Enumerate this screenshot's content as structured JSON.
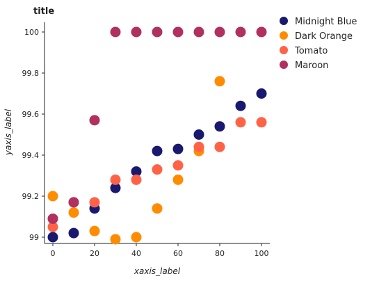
{
  "chart_data": {
    "type": "scatter",
    "title": "title",
    "xlabel": "xaxis_label",
    "ylabel": "yaxis_label",
    "xlim": [
      0,
      100
    ],
    "ylim": [
      99,
      100
    ],
    "x_ticks": [
      "0",
      "20",
      "40",
      "60",
      "80",
      "100"
    ],
    "y_ticks": [
      "99",
      "99.2",
      "99.4",
      "99.6",
      "99.8",
      "100"
    ],
    "grid": false,
    "legend_position": "right",
    "series": [
      {
        "name": "Midnight Blue",
        "color": "#191970",
        "points": [
          [
            0,
            99.0
          ],
          [
            10,
            99.02
          ],
          [
            20,
            99.14
          ],
          [
            30,
            99.24
          ],
          [
            40,
            99.32
          ],
          [
            50,
            99.42
          ],
          [
            60,
            99.43
          ],
          [
            70,
            99.5
          ],
          [
            80,
            99.54
          ],
          [
            90,
            99.64
          ],
          [
            100,
            99.7
          ]
        ]
      },
      {
        "name": "Dark Orange",
        "color": "#FF8C00",
        "points": [
          [
            0,
            99.2
          ],
          [
            10,
            99.12
          ],
          [
            20,
            99.03
          ],
          [
            30,
            98.99
          ],
          [
            40,
            99.0
          ],
          [
            50,
            99.14
          ],
          [
            60,
            99.28
          ],
          [
            70,
            99.42
          ],
          [
            80,
            99.76
          ]
        ]
      },
      {
        "name": "Tomato",
        "color": "#FF6347",
        "points": [
          [
            0,
            99.05
          ],
          [
            10,
            99.17
          ],
          [
            20,
            99.17
          ],
          [
            30,
            99.28
          ],
          [
            40,
            99.28
          ],
          [
            50,
            99.33
          ],
          [
            60,
            99.35
          ],
          [
            70,
            99.44
          ],
          [
            80,
            99.44
          ],
          [
            90,
            99.56
          ],
          [
            100,
            99.56
          ]
        ]
      },
      {
        "name": "Maroon",
        "color": "#B03060",
        "points": [
          [
            0,
            99.09
          ],
          [
            10,
            99.17
          ],
          [
            20,
            99.57
          ],
          [
            30,
            100.0
          ],
          [
            40,
            100.0
          ],
          [
            50,
            100.0
          ],
          [
            60,
            100.0
          ],
          [
            70,
            100.0
          ],
          [
            80,
            100.0
          ],
          [
            90,
            100.0
          ],
          [
            100,
            100.0
          ]
        ]
      }
    ]
  }
}
